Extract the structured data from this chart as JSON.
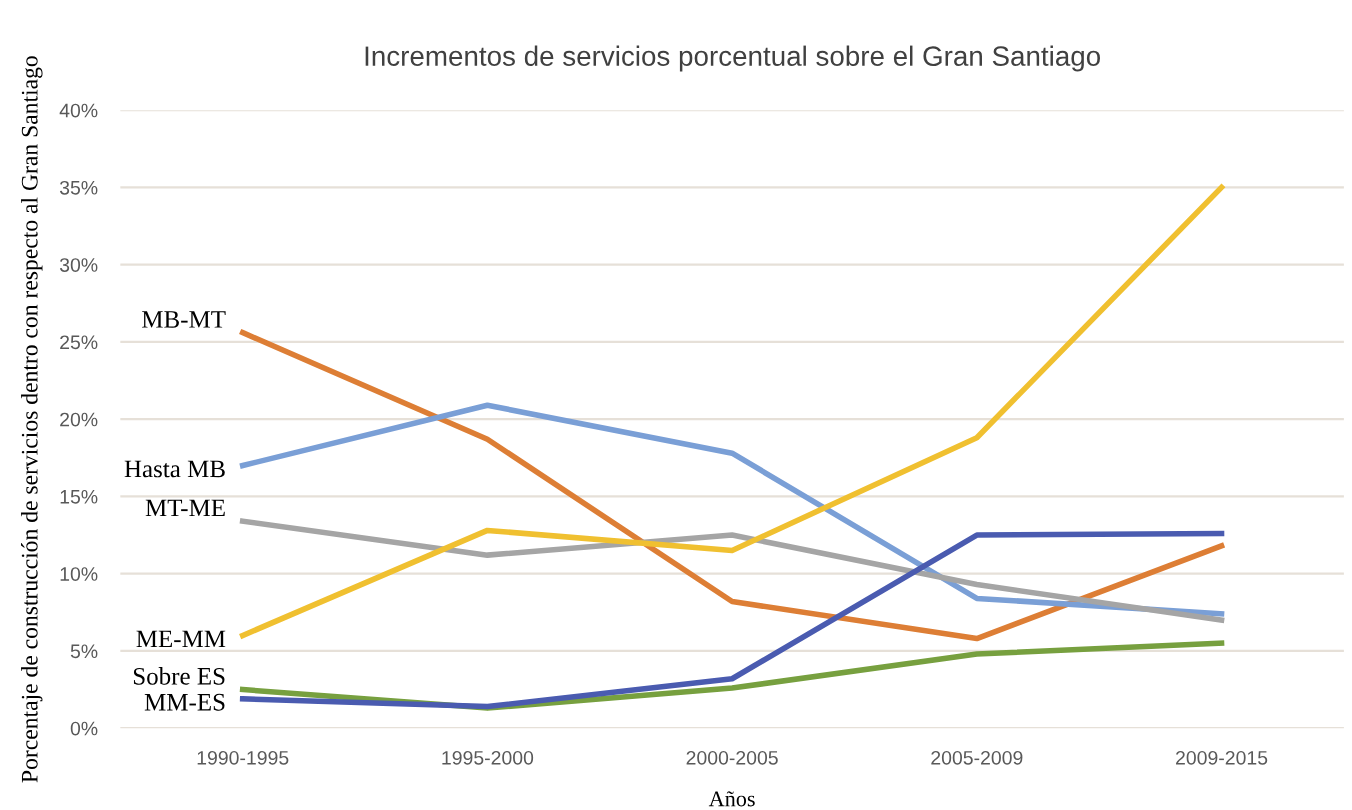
{
  "chart_data": {
    "type": "line",
    "title": "Incrementos de servicios porcentual sobre el Gran Santiago",
    "xlabel": "Años",
    "ylabel": "Porcentaje de construcción de servicios dentro con respecto al Gran Santiago",
    "categories": [
      "1990-1995",
      "1995-2000",
      "2000-2005",
      "2005-2009",
      "2009-2015"
    ],
    "series": [
      {
        "name": "MB-MT",
        "color": "#dd7e35",
        "values": [
          25.6,
          18.7,
          8.2,
          5.8,
          11.8
        ]
      },
      {
        "name": "Hasta MB",
        "color": "#7a9fd6",
        "values": [
          17.0,
          20.9,
          17.8,
          8.4,
          7.4
        ]
      },
      {
        "name": "MT-ME",
        "color": "#a5a5a5",
        "values": [
          13.4,
          11.2,
          12.5,
          9.3,
          7.0
        ]
      },
      {
        "name": "ME-MM",
        "color": "#f0c030",
        "values": [
          6.0,
          12.8,
          11.5,
          18.8,
          35.0
        ]
      },
      {
        "name": "Sobre ES",
        "color": "#77a03f",
        "values": [
          2.5,
          1.3,
          2.6,
          4.8,
          5.5
        ]
      },
      {
        "name": "MM-ES",
        "color": "#4a5bb0",
        "values": [
          1.9,
          1.4,
          3.2,
          12.5,
          12.6
        ]
      }
    ],
    "ylim": [
      0,
      40
    ],
    "yticks": [
      {
        "value": 0,
        "label": "0%"
      },
      {
        "value": 5,
        "label": "5%"
      },
      {
        "value": 10,
        "label": "10%"
      },
      {
        "value": 15,
        "label": "15%"
      },
      {
        "value": 20,
        "label": "20%"
      },
      {
        "value": 25,
        "label": "25%"
      },
      {
        "value": 30,
        "label": "30%"
      },
      {
        "value": 35,
        "label": "35%"
      },
      {
        "value": 40,
        "label": "40%"
      }
    ],
    "grid": "y",
    "legend": false,
    "marker": "none",
    "line_style": "solid"
  }
}
